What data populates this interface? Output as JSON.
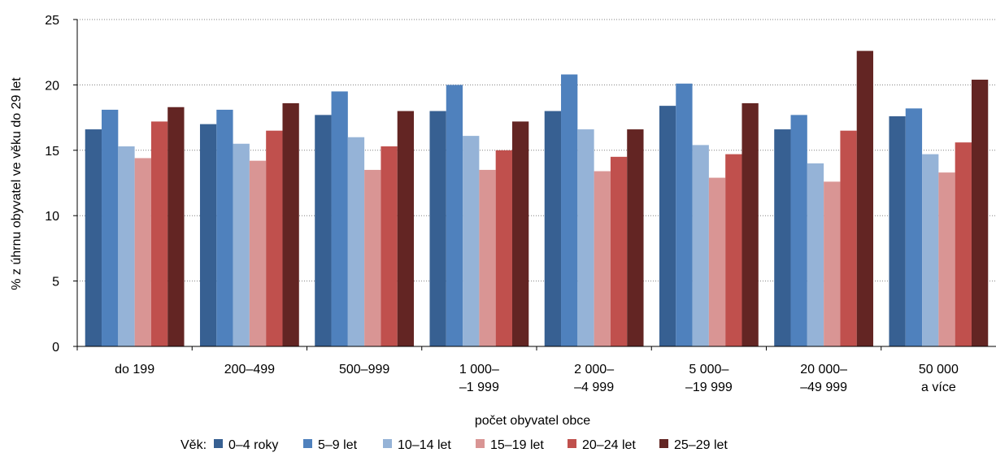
{
  "chart_data": {
    "type": "bar",
    "title": "",
    "xlabel": "počet obyvatel obce",
    "ylabel": "% z úhrnu obyvatel ve věku do 29 let",
    "ylim": [
      0,
      25
    ],
    "yticks": [
      0,
      5,
      10,
      15,
      20,
      25
    ],
    "grid": true,
    "legend_position": "bottom",
    "legend_title": "Věk:",
    "categories": [
      [
        "do 199"
      ],
      [
        "200–499"
      ],
      [
        "500–999"
      ],
      [
        "1 000–",
        "–1 999"
      ],
      [
        "2 000–",
        "–4 999"
      ],
      [
        "5 000–",
        "–19 999"
      ],
      [
        "20 000–",
        "–49 999"
      ],
      [
        "50 000",
        "a více"
      ]
    ],
    "series": [
      {
        "name": "0–4 roky",
        "color": "#376092",
        "values": [
          16.6,
          17.0,
          17.7,
          18.0,
          18.0,
          18.4,
          16.6,
          17.6
        ]
      },
      {
        "name": "5–9 let",
        "color": "#4F81BD",
        "values": [
          18.1,
          18.1,
          19.5,
          20.0,
          20.8,
          20.1,
          17.7,
          18.2
        ]
      },
      {
        "name": "10–14 let",
        "color": "#95B3D7",
        "values": [
          15.3,
          15.5,
          16.0,
          16.1,
          16.6,
          15.4,
          14.0,
          14.7
        ]
      },
      {
        "name": "15–19 let",
        "color": "#D99594",
        "values": [
          14.4,
          14.2,
          13.5,
          13.5,
          13.4,
          12.9,
          12.6,
          13.3
        ]
      },
      {
        "name": "20–24 let",
        "color": "#C0504D",
        "values": [
          17.2,
          16.5,
          15.3,
          15.0,
          14.5,
          14.7,
          16.5,
          15.6
        ]
      },
      {
        "name": "25–29 let",
        "color": "#632523",
        "values": [
          18.3,
          18.6,
          18.0,
          17.2,
          16.6,
          18.6,
          22.6,
          20.4
        ]
      }
    ]
  }
}
